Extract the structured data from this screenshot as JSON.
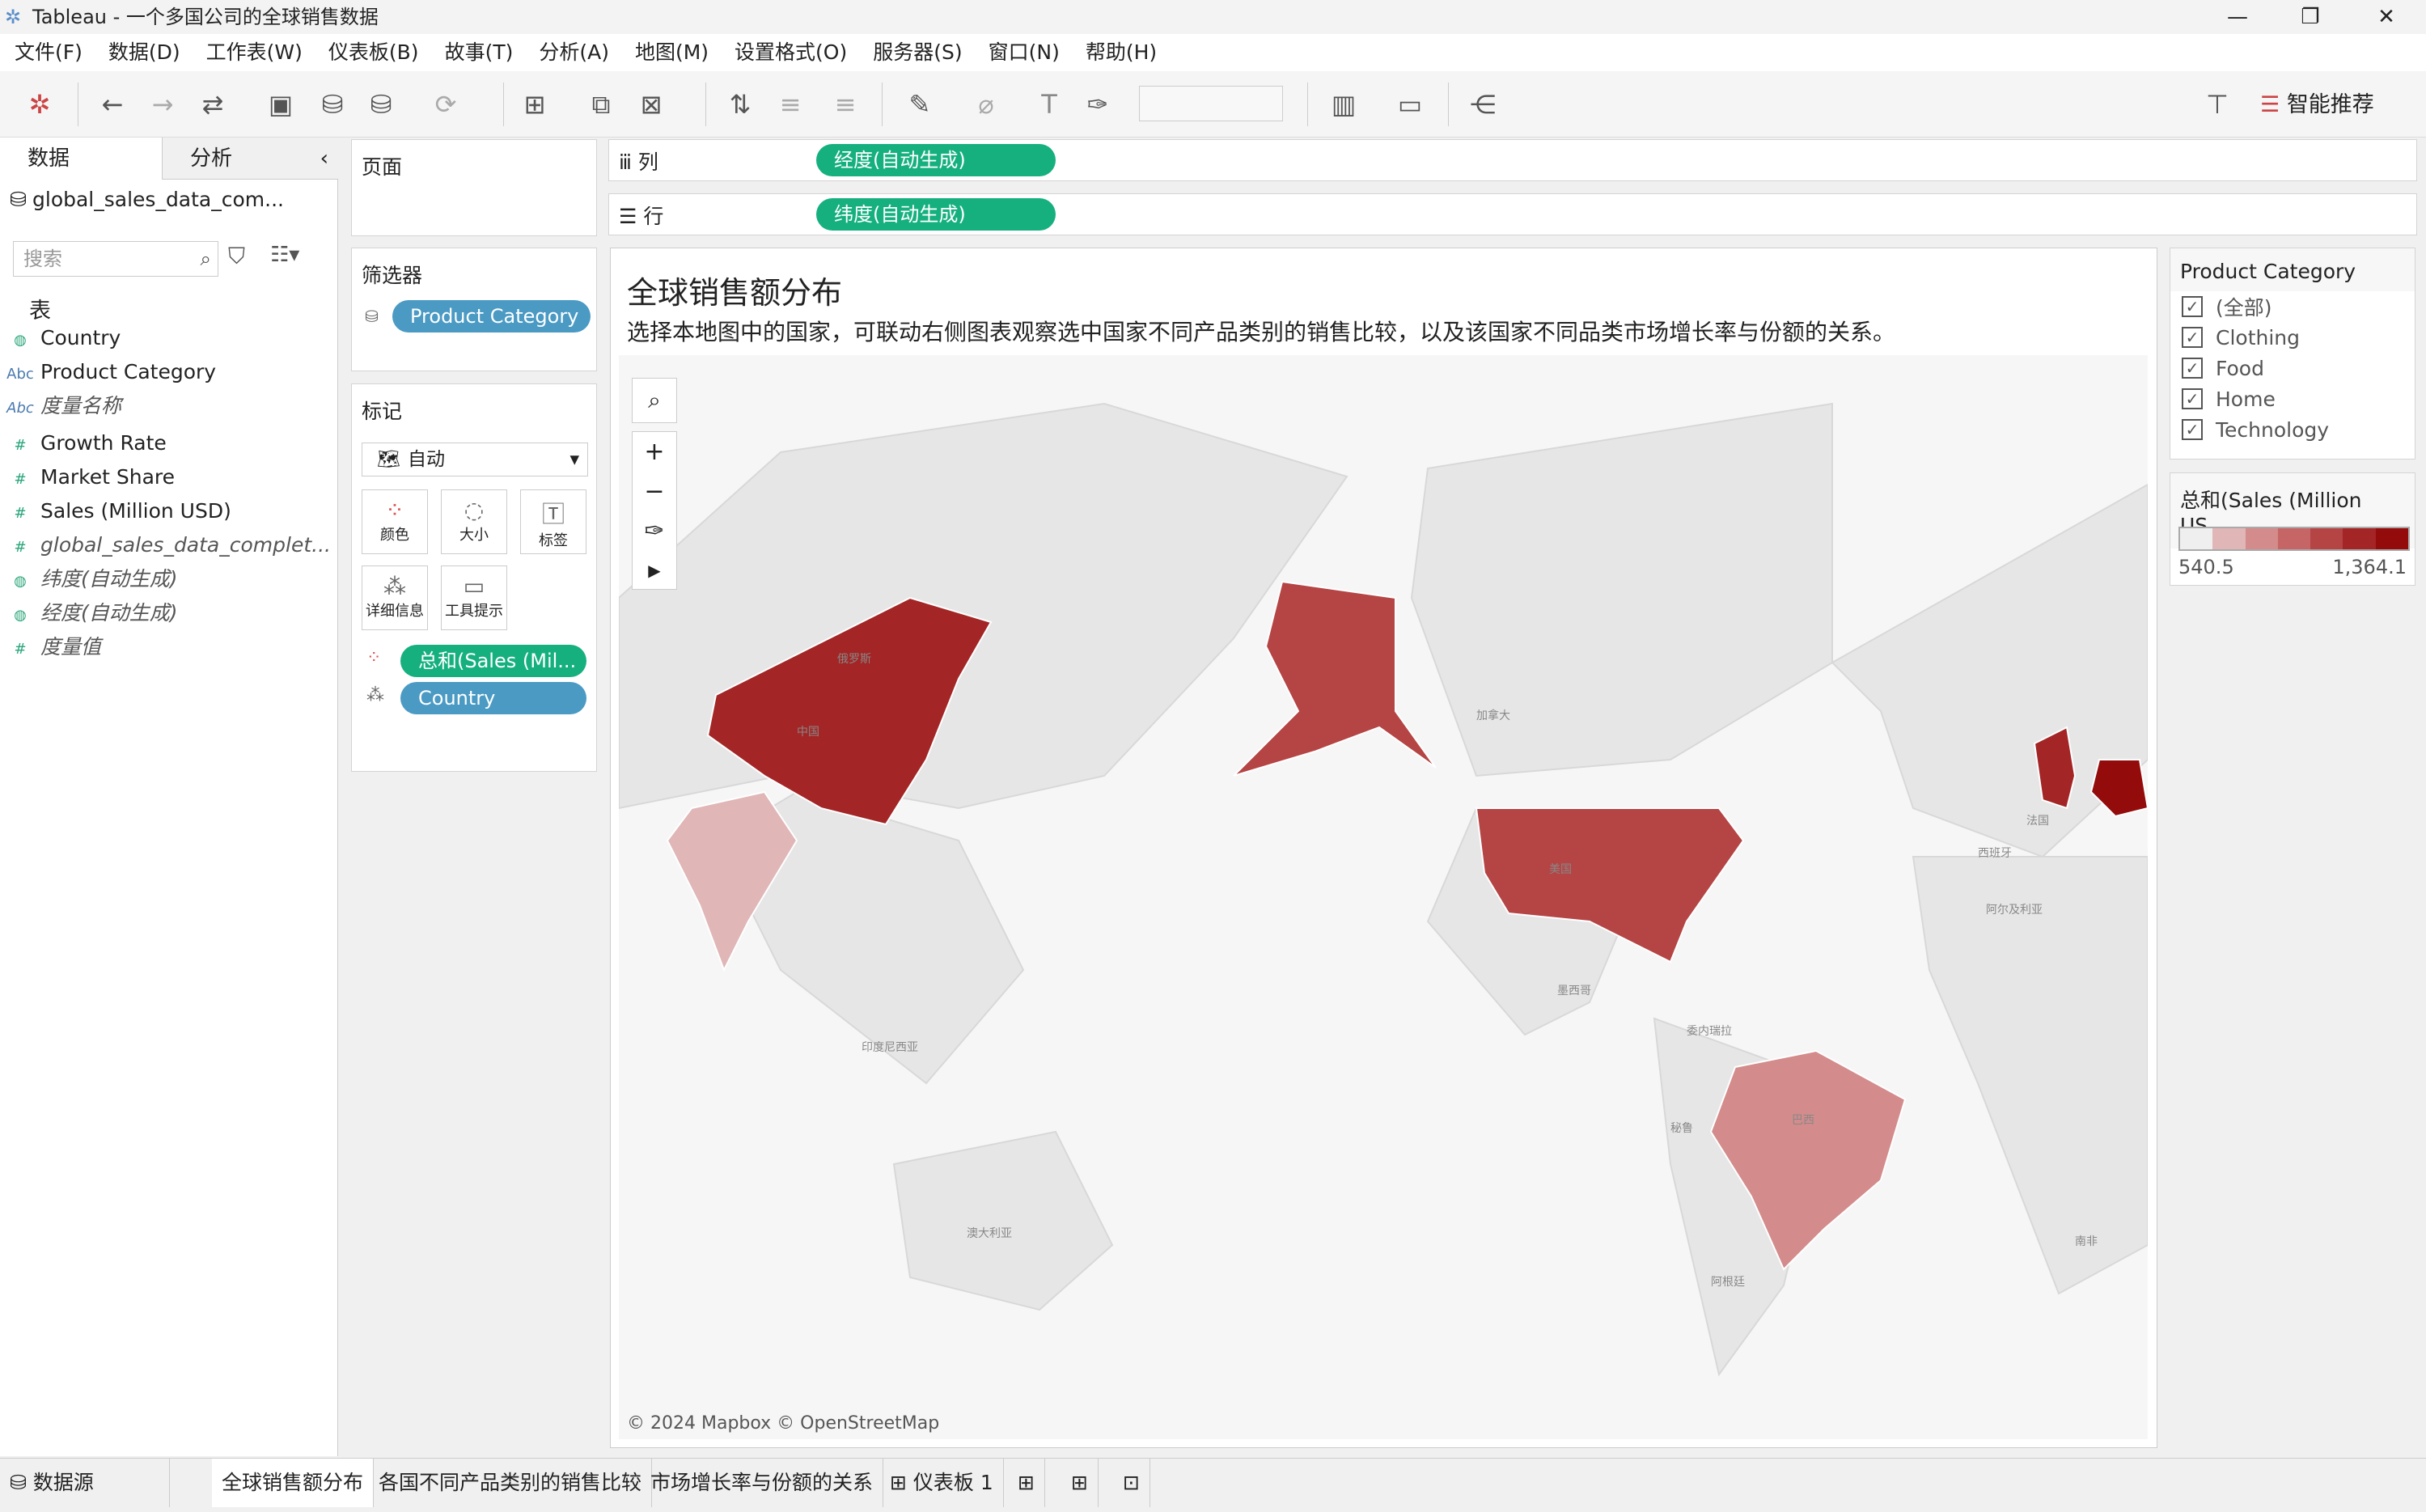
{
  "window": {
    "title": "Tableau - 一个多国公司的全球销售数据",
    "minimize": "—",
    "restore": "❐",
    "close": "✕"
  },
  "menu": [
    "文件(F)",
    "数据(D)",
    "工作表(W)",
    "仪表板(B)",
    "故事(T)",
    "分析(A)",
    "地图(M)",
    "设置格式(O)",
    "服务器(S)",
    "窗口(N)",
    "帮助(H)"
  ],
  "toolbar": {
    "smart_recommend": "智能推荐"
  },
  "left_panel": {
    "tab_data": "数据",
    "tab_analysis": "分析",
    "datasource": "global_sales_data_com...",
    "search_placeholder": "搜索",
    "section_table": "表",
    "fields": [
      {
        "icon": "globe",
        "label": "Country",
        "italic": false
      },
      {
        "icon": "Abc",
        "label": "Product Category",
        "italic": false
      },
      {
        "icon": "Abc",
        "label": "度量名称",
        "italic": true
      },
      {
        "icon": "#",
        "label": "Growth Rate",
        "italic": false
      },
      {
        "icon": "#",
        "label": "Market Share",
        "italic": false
      },
      {
        "icon": "#",
        "label": "Sales (Million USD)",
        "italic": false
      },
      {
        "icon": "#",
        "label": "global_sales_data_complet...",
        "italic": true
      },
      {
        "icon": "globe",
        "label": "纬度(自动生成)",
        "italic": true
      },
      {
        "icon": "globe",
        "label": "经度(自动生成)",
        "italic": true
      },
      {
        "icon": "#",
        "label": "度量值",
        "italic": true
      }
    ]
  },
  "pages": {
    "title": "页面"
  },
  "filters": {
    "title": "筛选器",
    "pill": "Product Category"
  },
  "marks": {
    "title": "标记",
    "type": "自动",
    "buttons": [
      "颜色",
      "大小",
      "标签",
      "详细信息",
      "工具提示"
    ],
    "pills": [
      "总和(Sales (Mil...",
      "Country"
    ]
  },
  "shelves": {
    "columns_label": "列",
    "columns_pill": "经度(自动生成)",
    "rows_label": "行",
    "rows_pill": "纬度(自动生成)"
  },
  "viz": {
    "title": "全球销售额分布",
    "subtitle": "选择本地图中的国家，可联动右侧图表观察选中国家不同产品类别的销售比较，以及该国家不同品类市场增长率与份额的关系。",
    "attribution": "© 2024 Mapbox © OpenStreetMap",
    "map_labels": [
      "俄罗斯",
      "加拿大",
      "美国",
      "中国",
      "巴西",
      "澳大利亚",
      "印度尼西亚",
      "墨西哥",
      "委内瑞拉",
      "秘鲁",
      "阿根廷",
      "法国",
      "西班牙",
      "阿尔及利亚",
      "南非"
    ]
  },
  "filter_card": {
    "title": "Product Category",
    "options": [
      {
        "label": "(全部)",
        "checked": true
      },
      {
        "label": "Clothing",
        "checked": true
      },
      {
        "label": "Food",
        "checked": true
      },
      {
        "label": "Home",
        "checked": true
      },
      {
        "label": "Technology",
        "checked": true
      }
    ]
  },
  "legend": {
    "title": "总和(Sales (Million US...",
    "min": "540.5",
    "max": "1,364.1",
    "colors": [
      "#efefef",
      "#e0b6b6",
      "#d38b8b",
      "#c66565",
      "#b54444",
      "#a32525",
      "#930b0b"
    ]
  },
  "sheet_tabs": {
    "datasource": "数据源",
    "tabs": [
      "全球销售额分布",
      "各国不同产品类别的销售比较",
      "市场增长率与份额的关系",
      "仪表板 1"
    ],
    "active": 0
  }
}
